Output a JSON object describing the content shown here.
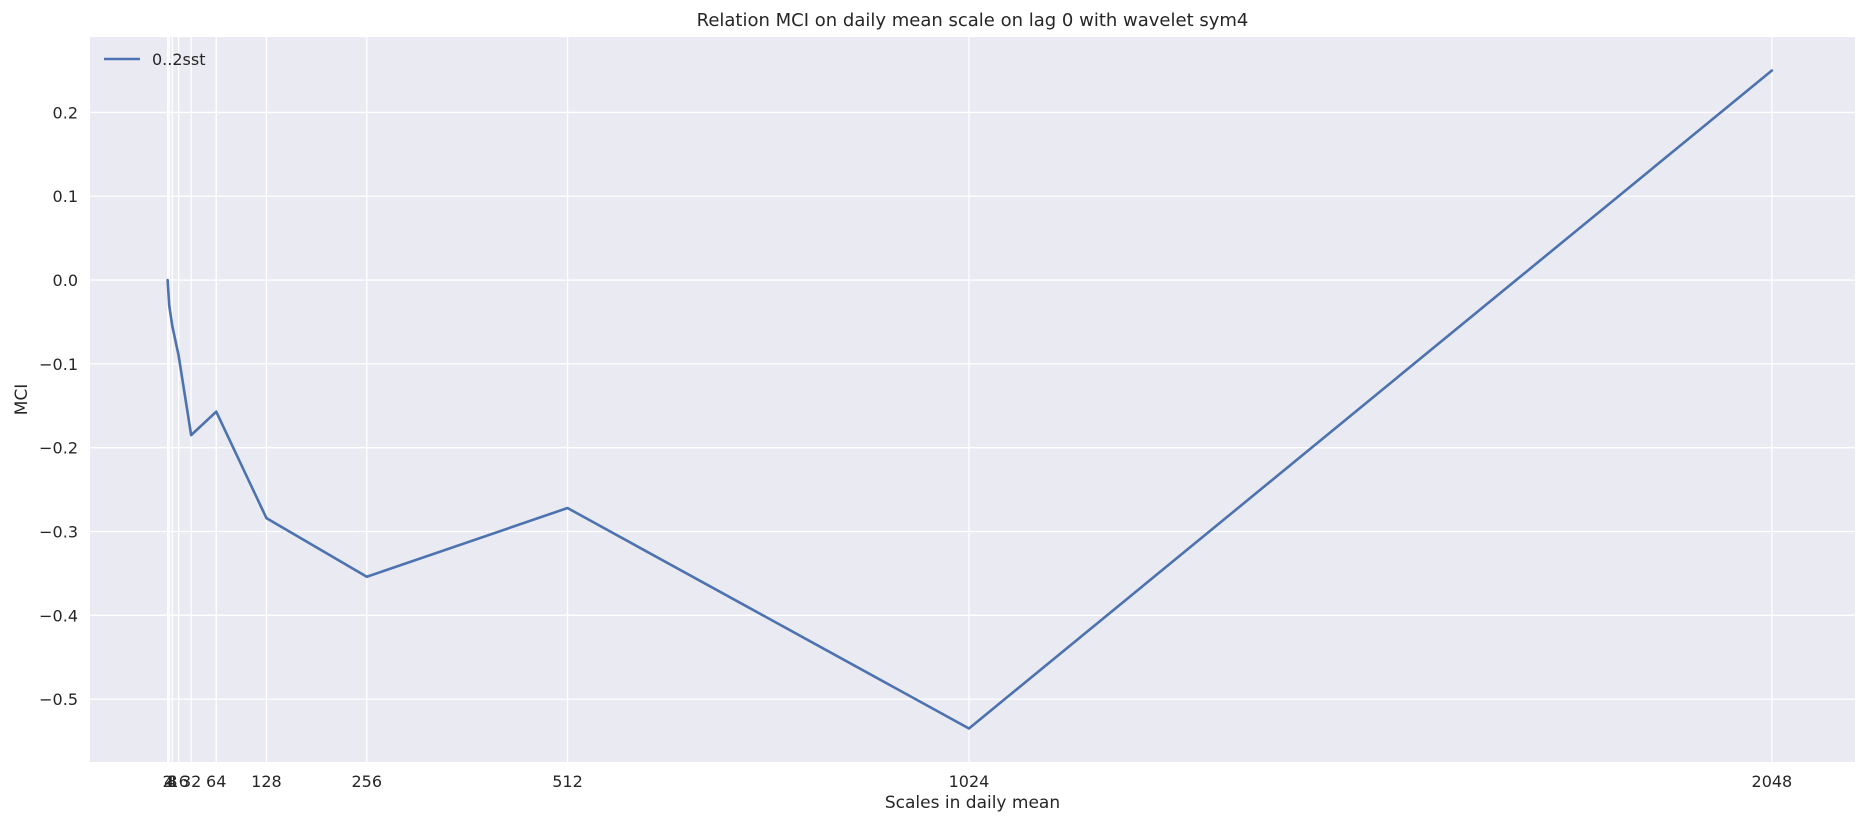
{
  "chart_data": {
    "type": "line",
    "title": "Relation MCI on daily mean scale on lag 0 with wavelet sym4",
    "xlabel": "Scales in daily mean",
    "ylabel": "MCI",
    "x_ticks": [
      2,
      4,
      8,
      16,
      32,
      64,
      128,
      256,
      512,
      1024,
      2048
    ],
    "x_tick_labels": [
      "2",
      "4",
      "8",
      "16",
      "32",
      "64",
      "128",
      "256",
      "512",
      "1024",
      "2048"
    ],
    "xlim": [
      -97,
      2154
    ],
    "ylim": [
      -0.575,
      0.29
    ],
    "y_ticks": [
      -0.5,
      -0.4,
      -0.3,
      -0.2,
      -0.1,
      0.0,
      0.1,
      0.2
    ],
    "y_tick_labels": [
      "−0.5",
      "−0.4",
      "−0.3",
      "−0.2",
      "−0.1",
      "0.0",
      "0.1",
      "0.2"
    ],
    "grid": true,
    "legend_position": "top-left",
    "colors": {
      "background": "#eaeaf2",
      "grid": "#ffffff",
      "series": "#4c72b0"
    },
    "series": [
      {
        "name": "0..2sst",
        "x": [
          2,
          4,
          8,
          16,
          32,
          64,
          128,
          256,
          512,
          1024,
          2048
        ],
        "values": [
          0.0,
          -0.03,
          -0.055,
          -0.09,
          -0.185,
          -0.157,
          -0.284,
          -0.354,
          -0.272,
          -0.535,
          0.25
        ]
      }
    ]
  }
}
